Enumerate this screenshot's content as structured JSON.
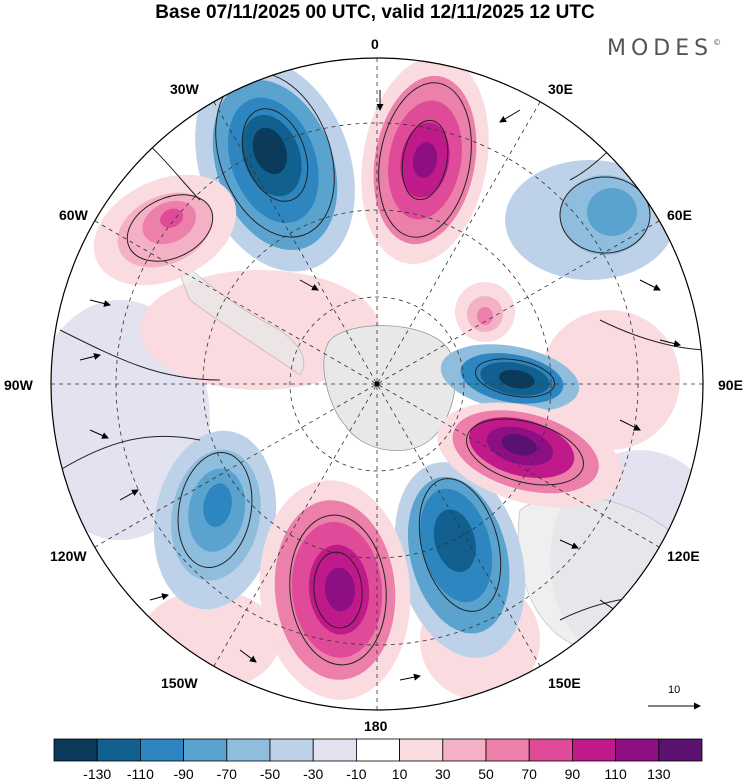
{
  "title": "Base 07/11/2025 00 UTC, valid 12/11/2025 12 UTC",
  "brand": "MODES",
  "brand_mark": "©",
  "longitude_labels": {
    "top": "0",
    "ne": "30E",
    "nnw": "30W",
    "wnw": "60W",
    "ene": "60E",
    "west": "90W",
    "east": "90E",
    "wsw": "120W",
    "ese": "120E",
    "ssw": "150W",
    "sse": "150E",
    "bottom": "180"
  },
  "reference_vector": "10",
  "colorbar": {
    "colors": [
      "#0b3a5a",
      "#12608f",
      "#2d86bf",
      "#5aa3cf",
      "#8fbddd",
      "#bdd2e8",
      "#e3e2f0",
      "#ffffff",
      "#fadbe0",
      "#f4b0c4",
      "#ec80aa",
      "#df4b98",
      "#c0198a",
      "#8e0f84",
      "#5a116f"
    ],
    "ticks": [
      "-130",
      "-110",
      "-90",
      "-70",
      "-50",
      "-30",
      "-10",
      "10",
      "30",
      "50",
      "70",
      "90",
      "110",
      "130"
    ]
  },
  "colors": {
    "land": "#e8e8e8",
    "neg_strong": "#1a5f87",
    "pos_strong": "#a0127f"
  }
}
